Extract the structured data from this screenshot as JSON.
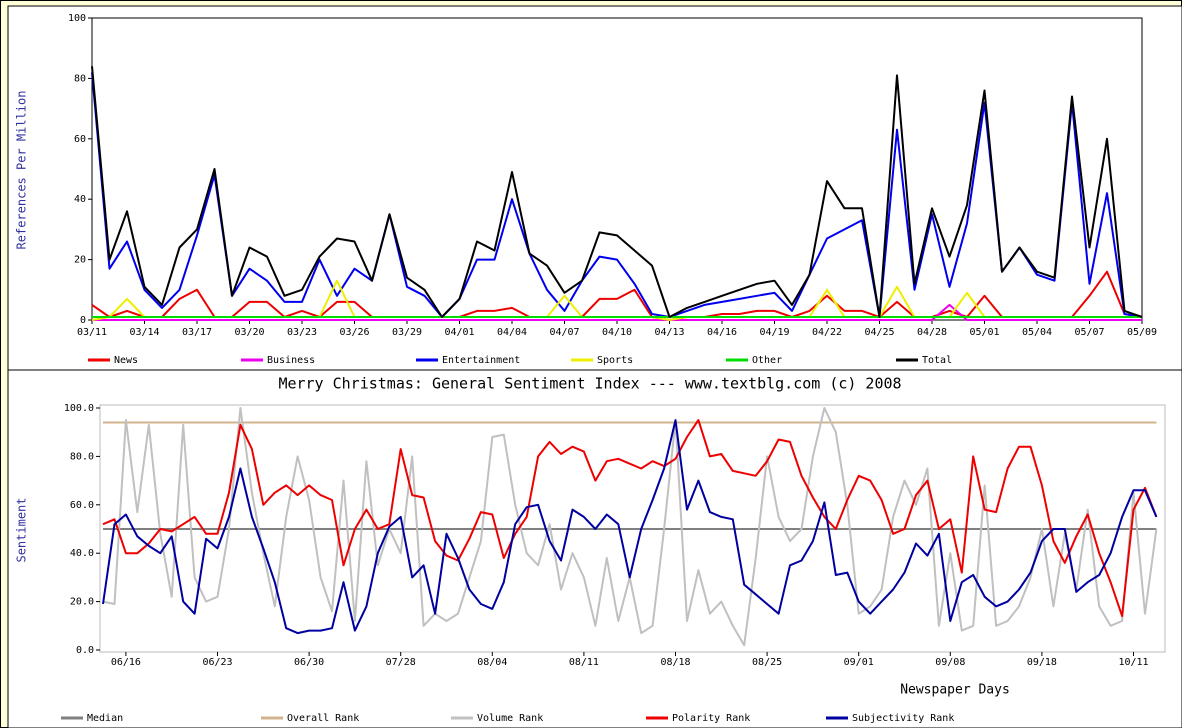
{
  "chart_data": [
    {
      "type": "line",
      "ylabel": "References Per Million",
      "categories": [
        "03/11",
        null,
        null,
        "03/14",
        null,
        null,
        "03/17",
        null,
        null,
        "03/20",
        null,
        null,
        "03/23",
        null,
        null,
        "03/26",
        null,
        null,
        "03/29",
        null,
        null,
        "04/01",
        null,
        null,
        "04/04",
        null,
        null,
        "04/07",
        null,
        null,
        "04/10",
        null,
        null,
        "04/13",
        null,
        null,
        "04/16",
        null,
        null,
        "04/19",
        null,
        null,
        "04/22",
        null,
        null,
        "04/25",
        null,
        null,
        "04/28",
        null,
        null,
        "05/01",
        null,
        null,
        "05/04",
        null,
        null,
        "05/07",
        null,
        null,
        "05/09"
      ],
      "ylim": [
        0,
        100
      ],
      "yticks": [
        0,
        20,
        40,
        60,
        80,
        100
      ],
      "series": [
        {
          "name": "News",
          "color": "#ee0000",
          "values": [
            5,
            1,
            3,
            1,
            1,
            7,
            10,
            1,
            1,
            6,
            6,
            1,
            3,
            1,
            6,
            6,
            1,
            1,
            1,
            1,
            1,
            1,
            3,
            3,
            4,
            1,
            1,
            1,
            1,
            7,
            7,
            10,
            1,
            0,
            1,
            1,
            2,
            2,
            3,
            3,
            1,
            3,
            8,
            3,
            3,
            1,
            6,
            1,
            1,
            3,
            1,
            8,
            1,
            1,
            1,
            1,
            1,
            8,
            16,
            2,
            1
          ]
        },
        {
          "name": "Business",
          "color": "#ee00ee",
          "values": [
            0,
            0,
            0,
            0,
            0,
            0,
            0,
            0,
            0,
            0,
            0,
            0,
            0,
            0,
            0,
            0,
            0,
            0,
            0,
            0,
            0,
            0,
            0,
            0,
            0,
            0,
            0,
            0,
            0,
            0,
            0,
            0,
            0,
            0,
            0,
            0,
            0,
            0,
            0,
            0,
            0,
            0,
            0,
            0,
            0,
            0,
            0,
            0,
            0,
            5,
            0,
            0,
            0,
            0,
            0,
            0,
            0,
            0,
            0,
            0,
            0
          ]
        },
        {
          "name": "Entertainment",
          "color": "#0000ee",
          "values": [
            82,
            17,
            26,
            10,
            4,
            10,
            28,
            48,
            8,
            17,
            13,
            6,
            6,
            20,
            8,
            17,
            13,
            35,
            11,
            8,
            1,
            7,
            20,
            20,
            40,
            22,
            10,
            3,
            13,
            21,
            20,
            12,
            2,
            1,
            3,
            5,
            6,
            7,
            8,
            9,
            3,
            15,
            27,
            30,
            33,
            1,
            63,
            10,
            35,
            11,
            32,
            72,
            16,
            24,
            15,
            13,
            72,
            12,
            42,
            2,
            1
          ]
        },
        {
          "name": "Sports",
          "color": "#eeee00",
          "values": [
            0,
            1,
            7,
            1,
            1,
            1,
            1,
            1,
            1,
            1,
            1,
            1,
            1,
            1,
            13,
            1,
            1,
            1,
            1,
            1,
            1,
            1,
            1,
            1,
            1,
            1,
            1,
            8,
            1,
            1,
            1,
            1,
            1,
            0,
            1,
            1,
            1,
            1,
            1,
            1,
            1,
            1,
            10,
            1,
            1,
            1,
            11,
            1,
            1,
            1,
            9,
            1,
            1,
            1,
            1,
            1,
            1,
            1,
            1,
            1,
            1
          ]
        },
        {
          "name": "Other",
          "color": "#00dd00",
          "values": [
            1,
            1,
            1,
            1,
            1,
            1,
            1,
            1,
            1,
            1,
            1,
            1,
            1,
            1,
            1,
            1,
            1,
            1,
            1,
            1,
            1,
            1,
            1,
            1,
            1,
            1,
            1,
            1,
            1,
            1,
            1,
            1,
            1,
            1,
            1,
            1,
            1,
            1,
            1,
            1,
            1,
            1,
            1,
            1,
            1,
            1,
            1,
            1,
            1,
            1,
            1,
            1,
            1,
            1,
            1,
            1,
            1,
            1,
            1,
            1,
            1
          ]
        },
        {
          "name": "Total",
          "color": "#000000",
          "values": [
            84,
            20,
            36,
            11,
            5,
            24,
            30,
            50,
            8,
            24,
            21,
            8,
            10,
            21,
            27,
            26,
            13,
            35,
            14,
            10,
            1,
            7,
            26,
            23,
            49,
            22,
            18,
            9,
            13,
            29,
            28,
            23,
            18,
            1,
            4,
            6,
            8,
            10,
            12,
            13,
            5,
            15,
            46,
            37,
            37,
            1,
            81,
            12,
            37,
            21,
            38,
            76,
            16,
            24,
            16,
            14,
            74,
            24,
            60,
            3,
            1
          ]
        }
      ]
    },
    {
      "type": "line",
      "title": "Merry Christmas: General Sentiment Index --- www.textblg.com (c) 2008",
      "xlabel": "Newspaper Days",
      "ylabel": "Sentiment",
      "categories": [
        null,
        null,
        "06/16",
        null,
        null,
        null,
        null,
        null,
        null,
        null,
        "06/23",
        null,
        null,
        null,
        null,
        null,
        null,
        null,
        "06/30",
        null,
        null,
        null,
        null,
        null,
        null,
        null,
        "07/28",
        null,
        null,
        null,
        null,
        null,
        null,
        null,
        "08/04",
        null,
        null,
        null,
        null,
        null,
        null,
        null,
        "08/11",
        null,
        null,
        null,
        null,
        null,
        null,
        null,
        "08/18",
        null,
        null,
        null,
        null,
        null,
        null,
        null,
        "08/25",
        null,
        null,
        null,
        null,
        null,
        null,
        null,
        "09/01",
        null,
        null,
        null,
        null,
        null,
        null,
        null,
        "09/08",
        null,
        null,
        null,
        null,
        null,
        null,
        null,
        "09/18",
        null,
        null,
        null,
        null,
        null,
        null,
        null,
        "10/11",
        null,
        null
      ],
      "ylim": [
        0,
        100
      ],
      "yticks": [
        {
          "value": 0,
          "label": "0.0"
        },
        {
          "value": 20,
          "label": "20.0"
        },
        {
          "value": 40,
          "label": "40.0"
        },
        {
          "value": 60,
          "label": "60.0"
        },
        {
          "value": 80,
          "label": "80.0"
        },
        {
          "value": 100,
          "label": "100.0"
        }
      ],
      "series": [
        {
          "name": "Median",
          "color": "#808080",
          "values": [
            50,
            50,
            50,
            50,
            50,
            50,
            50,
            50,
            50,
            50,
            50,
            50,
            50,
            50,
            50,
            50,
            50,
            50,
            50,
            50,
            50,
            50,
            50,
            50,
            50,
            50,
            50,
            50,
            50,
            50,
            50,
            50,
            50,
            50,
            50,
            50,
            50,
            50,
            50,
            50,
            50,
            50,
            50,
            50,
            50,
            50,
            50,
            50,
            50,
            50,
            50,
            50,
            50,
            50,
            50,
            50,
            50,
            50,
            50,
            50,
            50,
            50,
            50,
            50,
            50,
            50,
            50,
            50,
            50,
            50,
            50,
            50,
            50,
            50,
            50,
            50,
            50,
            50,
            50,
            50,
            50,
            50,
            50,
            50,
            50,
            50,
            50,
            50,
            50,
            50,
            50,
            50,
            50
          ]
        },
        {
          "name": "Overall Rank",
          "color": "#d2b48c",
          "values": [
            94,
            94,
            94,
            94,
            94,
            94,
            94,
            94,
            94,
            94,
            94,
            94,
            94,
            94,
            94,
            94,
            94,
            94,
            94,
            94,
            94,
            94,
            94,
            94,
            94,
            94,
            94,
            94,
            94,
            94,
            94,
            94,
            94,
            94,
            94,
            94,
            94,
            94,
            94,
            94,
            94,
            94,
            94,
            94,
            94,
            94,
            94,
            94,
            94,
            94,
            94,
            94,
            94,
            94,
            94,
            94,
            94,
            94,
            94,
            94,
            94,
            94,
            94,
            94,
            94,
            94,
            94,
            94,
            94,
            94,
            94,
            94,
            94,
            94,
            94,
            94,
            94,
            94,
            94,
            94,
            94,
            94,
            94,
            94,
            94,
            94,
            94,
            94,
            94,
            94,
            94,
            94,
            94
          ]
        },
        {
          "name": "Volume Rank",
          "color": "#c0c0c0",
          "values": [
            20,
            19,
            95,
            57,
            93,
            48,
            22,
            93,
            30,
            20,
            22,
            50,
            100,
            65,
            40,
            18,
            55,
            80,
            62,
            30,
            16,
            70,
            12,
            78,
            35,
            50,
            40,
            80,
            10,
            15,
            12,
            15,
            30,
            45,
            88,
            89,
            60,
            40,
            35,
            52,
            25,
            40,
            30,
            10,
            38,
            12,
            30,
            7,
            10,
            50,
            95,
            12,
            33,
            15,
            20,
            10,
            2,
            38,
            80,
            55,
            45,
            50,
            80,
            100,
            90,
            60,
            15,
            18,
            25,
            55,
            70,
            60,
            75,
            10,
            40,
            8,
            10,
            68,
            10,
            12,
            18,
            30,
            50,
            18,
            48,
            25,
            58,
            18,
            10,
            12,
            65,
            15,
            50
          ]
        },
        {
          "name": "Polarity Rank",
          "color": "#ee0000",
          "values": [
            52,
            54,
            40,
            40,
            44,
            50,
            49,
            52,
            55,
            48,
            48,
            65,
            93,
            83,
            60,
            65,
            68,
            64,
            68,
            64,
            62,
            35,
            50,
            58,
            50,
            52,
            83,
            64,
            63,
            45,
            39,
            37,
            46,
            57,
            56,
            38,
            48,
            55,
            80,
            86,
            81,
            84,
            82,
            70,
            78,
            79,
            77,
            75,
            78,
            76,
            79,
            88,
            95,
            80,
            81,
            74,
            73,
            72,
            78,
            87,
            86,
            72,
            63,
            55,
            50,
            62,
            72,
            70,
            62,
            48,
            50,
            64,
            70,
            50,
            54,
            32,
            80,
            58,
            57,
            75,
            84,
            84,
            68,
            45,
            36,
            47,
            56,
            40,
            28,
            14,
            58,
            67,
            55
          ]
        },
        {
          "name": "Subjectivity Rank",
          "color": "#0000a0",
          "values": [
            19,
            52,
            56,
            47,
            43,
            40,
            47,
            20,
            15,
            46,
            42,
            55,
            75,
            55,
            42,
            28,
            9,
            7,
            8,
            8,
            9,
            28,
            8,
            18,
            40,
            51,
            55,
            30,
            35,
            15,
            48,
            38,
            25,
            19,
            17,
            28,
            52,
            59,
            60,
            45,
            37,
            58,
            55,
            50,
            56,
            52,
            30,
            50,
            62,
            75,
            95,
            58,
            70,
            57,
            55,
            54,
            27,
            23,
            19,
            15,
            35,
            37,
            45,
            61,
            31,
            32,
            20,
            15,
            20,
            25,
            32,
            44,
            39,
            48,
            12,
            28,
            31,
            22,
            18,
            20,
            25,
            32,
            45,
            50,
            50,
            24,
            28,
            31,
            40,
            55,
            66,
            66,
            55
          ]
        }
      ]
    }
  ]
}
